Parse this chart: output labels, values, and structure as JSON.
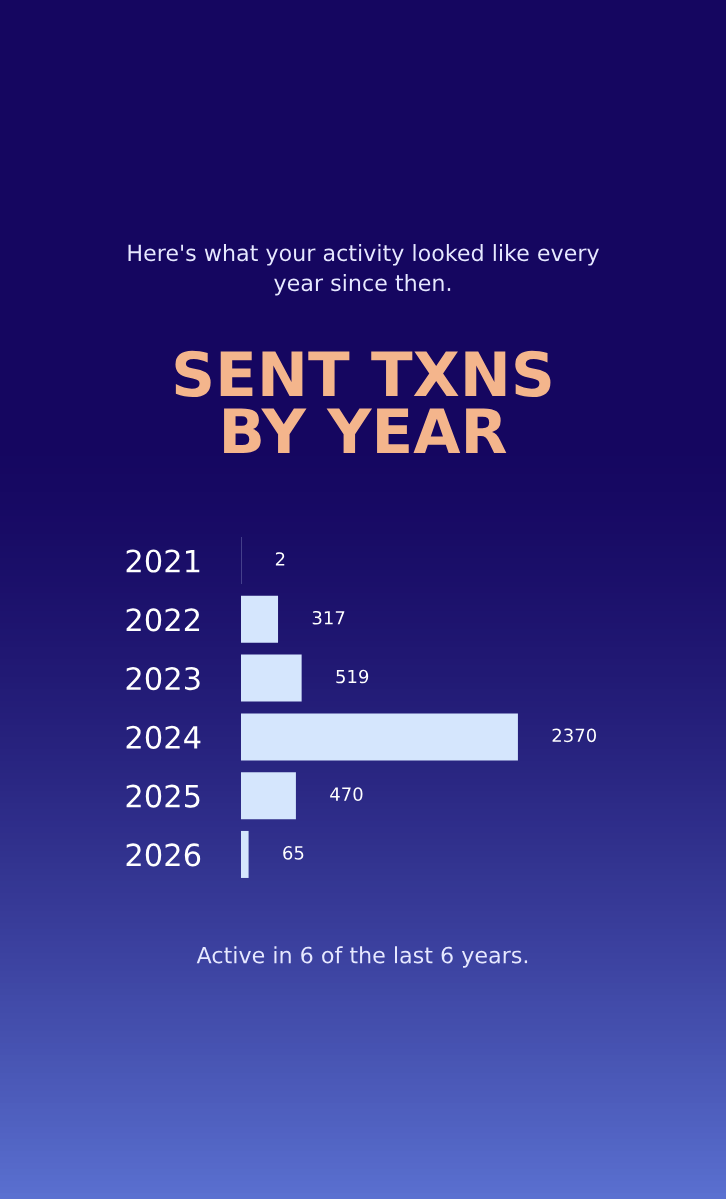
{
  "chart_data": {
    "type": "bar",
    "orientation": "horizontal",
    "title": "SENT TXNS\nBY YEAR",
    "subtitle": "Here's what your activity looked like every\nyear since then.",
    "categories": [
      "2021",
      "2022",
      "2023",
      "2024",
      "2025",
      "2026"
    ],
    "values": [
      2,
      317,
      519,
      2370,
      470,
      65
    ],
    "color": "#d5e6fd",
    "data_labels": true,
    "annotations": [
      "Active in 6 of the last 6 years."
    ]
  }
}
